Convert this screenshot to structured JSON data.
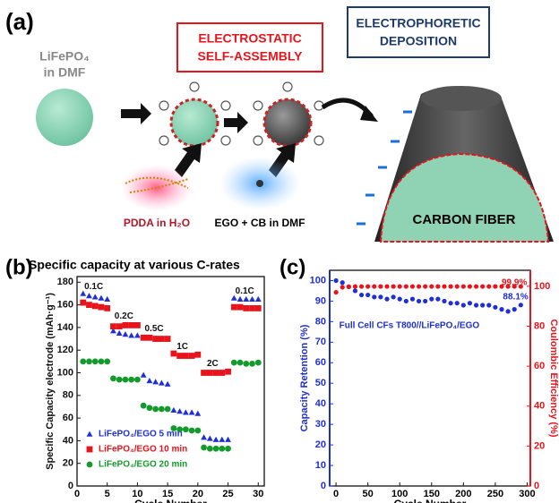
{
  "panels": {
    "a": "(a)",
    "b": "(b)",
    "c": "(c)"
  },
  "schematic": {
    "sample_line1": "LiFePO₄",
    "sample_line2": "in DMF",
    "step1_line1": "ELECTROSTATIC",
    "step1_line2": "SELF-ASSEMBLY",
    "step2_line1": "ELECTROPHORETIC",
    "step2_line2": "DEPOSITION",
    "pdda": "PDDA in H₂O",
    "ego": "EGO + CB in DMF",
    "fiber": "CARBON FIBER"
  },
  "chart_data": [
    {
      "type": "scatter",
      "title": "Specific capacity at various C-rates",
      "xlabel": "Cycle Number",
      "ylabel": "Specific Capacity electrode (mAh·g⁻¹)",
      "x": [
        1,
        2,
        3,
        4,
        5,
        6,
        7,
        8,
        9,
        10,
        11,
        12,
        13,
        14,
        15,
        16,
        17,
        18,
        19,
        20,
        21,
        22,
        23,
        24,
        25,
        26,
        27,
        28,
        29,
        30
      ],
      "xlim": [
        0,
        31
      ],
      "xticks": [
        0,
        5,
        10,
        15,
        20,
        25,
        30
      ],
      "ylim": [
        0,
        185
      ],
      "yticks": [
        0,
        20,
        40,
        60,
        80,
        100,
        120,
        140,
        160,
        180
      ],
      "legend": "lower left",
      "annotations": [
        "0.1C",
        "0.2C",
        "0.5C",
        "1C",
        "2C",
        "0.1C"
      ],
      "series": [
        {
          "name": "LiFePO₄/EGO 5 min",
          "color": "#1f2fd8",
          "marker": "triangle",
          "values": [
            170,
            168,
            167,
            166,
            165,
            137,
            135,
            134,
            133,
            133,
            98,
            93,
            92,
            91,
            90,
            67,
            66,
            65,
            65,
            64,
            43,
            42,
            41,
            41,
            41,
            166,
            165,
            165,
            165,
            165
          ]
        },
        {
          "name": "LiFePO₄/EGO 10 min",
          "color": "#e8141c",
          "marker": "square",
          "values": [
            162,
            160,
            159,
            158,
            157,
            141,
            141,
            142,
            142,
            142,
            131,
            131,
            130,
            130,
            130,
            117,
            115,
            115,
            115,
            116,
            100,
            100,
            100,
            100,
            101,
            158,
            158,
            157,
            157,
            157
          ]
        },
        {
          "name": "LiFePO₄/EGO 20 min",
          "color": "#139a2c",
          "marker": "circle",
          "values": [
            110,
            110,
            110,
            110,
            110,
            95,
            94,
            94,
            94,
            94,
            71,
            69,
            68,
            68,
            68,
            51,
            50,
            50,
            49,
            49,
            34,
            33,
            33,
            33,
            33,
            109,
            109,
            108,
            108,
            109
          ]
        }
      ]
    },
    {
      "type": "scatter",
      "xlabel": "Cycle Number",
      "ylabel": "Capacity Retention (%)",
      "y2label": "Coulombic Efficiency (%)",
      "x": [
        0,
        10,
        20,
        30,
        40,
        50,
        60,
        70,
        80,
        90,
        100,
        110,
        120,
        130,
        140,
        150,
        160,
        170,
        180,
        190,
        200,
        210,
        220,
        230,
        240,
        250,
        260,
        270,
        280,
        290
      ],
      "xlim": [
        -10,
        305
      ],
      "xticks": [
        0,
        50,
        100,
        150,
        200,
        250,
        300
      ],
      "ylim": [
        0,
        105
      ],
      "yticks": [
        0,
        10,
        20,
        30,
        40,
        50,
        60,
        70,
        80,
        90,
        100
      ],
      "y2lim": [
        0,
        108
      ],
      "y2ticks": [
        0,
        20,
        40,
        60,
        80,
        100
      ],
      "annotations": [
        "99.9%",
        "88.1%",
        "Full Cell CFs T800//LiFePO₄/EGO"
      ],
      "series": [
        {
          "color": "#1f2fd8",
          "marker": "circle",
          "values": [
            100,
            99,
            97,
            95,
            93,
            93,
            92,
            92,
            91,
            92,
            91,
            90,
            91,
            90,
            90,
            91,
            91,
            90,
            89,
            89,
            88,
            89,
            88,
            88,
            88,
            87,
            86,
            85,
            86,
            88.1
          ]
        },
        {
          "color": "#e8141c",
          "marker": "circle",
          "axis": "y2",
          "values": [
            97,
            99.5,
            99.8,
            99.9,
            99.9,
            99.9,
            99.9,
            99.9,
            99.9,
            99.9,
            99.9,
            99.9,
            99.9,
            99.9,
            99.9,
            99.9,
            99.9,
            99.9,
            99.9,
            99.9,
            99.9,
            99.9,
            99.9,
            99.9,
            99.9,
            99.9,
            99.9,
            99.9,
            99.9,
            99.9
          ]
        }
      ]
    }
  ]
}
